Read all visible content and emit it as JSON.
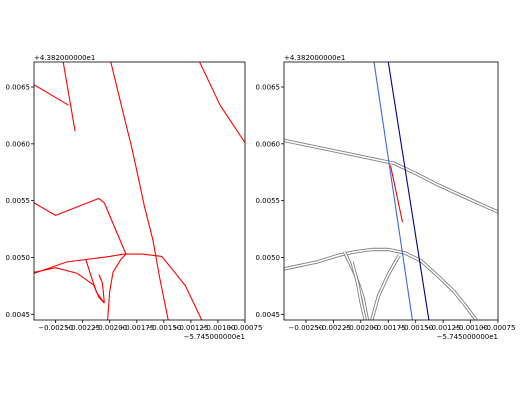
{
  "chart_data": [
    {
      "type": "line",
      "title": "",
      "xlabel": "",
      "ylabel": "",
      "x_offset_label": "−5.745000000e1",
      "y_offset_label": "+4.382000000e1",
      "xlim": [
        -0.0027,
        -0.00075
      ],
      "ylim": [
        0.00445,
        0.00672
      ],
      "x_ticks": [
        -0.0025,
        -0.00225,
        -0.002,
        -0.00175,
        -0.0015,
        -0.00125,
        -0.001,
        -0.00075
      ],
      "x_tick_labels": [
        "−0.00250",
        "−0.00225",
        "−0.00200",
        "−0.00175",
        "−0.00150",
        "−0.00125",
        "−0.00100",
        "−0.00075"
      ],
      "y_ticks": [
        0.0045,
        0.005,
        0.0055,
        0.006,
        0.0065
      ],
      "y_tick_labels": [
        "0.0045",
        "0.0050",
        "0.0055",
        "0.0060",
        "0.0065"
      ],
      "grid": false,
      "series": [
        {
          "color": "#ff0000",
          "style": "single",
          "x": [
            -0.0027,
            -0.00238
          ],
          "y": [
            0.00652,
            0.00634
          ]
        },
        {
          "color": "#ff0000",
          "style": "single",
          "x": [
            -0.00243,
            -0.00232
          ],
          "y": [
            0.00672,
            0.00611
          ]
        },
        {
          "color": "#ff0000",
          "style": "single",
          "x": [
            -0.00199,
            -0.00185,
            -0.0018,
            -0.00174,
            -0.00168,
            -0.0016,
            -0.00154,
            -0.00146
          ],
          "y": [
            0.00672,
            0.00617,
            0.00598,
            0.00572,
            0.00545,
            0.00515,
            0.00483,
            0.00445
          ]
        },
        {
          "color": "#ff0000",
          "style": "single",
          "x": [
            -0.00117,
            -0.00107,
            -0.00098,
            -0.00075
          ],
          "y": [
            0.00672,
            0.00652,
            0.00634,
            0.00601
          ]
        },
        {
          "color": "#ff0000",
          "style": "single",
          "x": [
            -0.0027,
            -0.0025,
            -0.0021,
            -0.00205,
            -0.00185
          ],
          "y": [
            0.00548,
            0.00537,
            0.00552,
            0.00548,
            0.00503
          ]
        },
        {
          "color": "#ff0000",
          "style": "single",
          "x": [
            -0.0027,
            -0.0024,
            -0.002,
            -0.00187,
            -0.0017,
            -0.00152,
            -0.0014,
            -0.0013,
            -0.00115
          ],
          "y": [
            0.00486,
            0.00496,
            0.00501,
            0.00503,
            0.00503,
            0.00501,
            0.00487,
            0.00475,
            0.00445
          ]
        },
        {
          "color": "#ff0000",
          "style": "single",
          "x": [
            -0.0027,
            -0.0025,
            -0.0023,
            -0.00215,
            -0.0021,
            -0.00205
          ],
          "y": [
            0.00487,
            0.00491,
            0.00486,
            0.00476,
            0.00465,
            0.0046
          ]
        },
        {
          "color": "#ff0000",
          "style": "single",
          "x": [
            -0.00222,
            -0.00216,
            -0.00212,
            -0.00205
          ],
          "y": [
            0.00498,
            0.0048,
            0.00469,
            0.0046
          ]
        },
        {
          "color": "#ff0000",
          "style": "single",
          "x": [
            -0.0021,
            -0.00207,
            -0.00206,
            -0.00205
          ],
          "y": [
            0.00485,
            0.00478,
            0.0047,
            0.0046
          ]
        },
        {
          "color": "#ff0000",
          "style": "single",
          "x": [
            -0.00202,
            -0.002,
            -0.00197,
            -0.0019,
            -0.00185
          ],
          "y": [
            0.00445,
            0.0047,
            0.00487,
            0.00498,
            0.00503
          ]
        }
      ]
    },
    {
      "type": "line",
      "title": "",
      "xlabel": "",
      "ylabel": "",
      "x_offset_label": "−5.745000000e1",
      "y_offset_label": "+4.382000000e1",
      "xlim": [
        -0.0027,
        -0.00075
      ],
      "ylim": [
        0.00445,
        0.00672
      ],
      "x_ticks": [
        -0.0025,
        -0.00225,
        -0.002,
        -0.00175,
        -0.0015,
        -0.00125,
        -0.001,
        -0.00075
      ],
      "x_tick_labels": [
        "−0.00250",
        "−0.00225",
        "−0.00200",
        "−0.00175",
        "−0.00150",
        "−0.00125",
        "−0.00100",
        "−0.00075"
      ],
      "y_ticks": [
        0.0045,
        0.005,
        0.0055,
        0.006,
        0.0065
      ],
      "y_tick_labels": [
        "0.0045",
        "0.0050",
        "0.0055",
        "0.0060",
        "0.0065"
      ],
      "grid": false,
      "series": [
        {
          "color": "#808080",
          "style": "double",
          "x": [
            -0.0027,
            -0.0023,
            -0.00195,
            -0.0017,
            -0.0015,
            -0.0013,
            -0.00105,
            -0.00075
          ],
          "y": [
            0.00603,
            0.00595,
            0.00588,
            0.00583,
            0.00574,
            0.00564,
            0.00553,
            0.0054
          ]
        },
        {
          "color": "#808080",
          "style": "double",
          "x": [
            -0.0027,
            -0.0024,
            -0.0022,
            -0.00205,
            -0.0019,
            -0.00175,
            -0.0016,
            -0.00145,
            -0.0013,
            -0.00115,
            -0.00105,
            -0.00095
          ],
          "y": [
            0.0049,
            0.00496,
            0.00502,
            0.00505,
            0.00507,
            0.00507,
            0.00504,
            0.00497,
            0.00484,
            0.0047,
            0.00458,
            0.00445
          ]
        },
        {
          "color": "#808080",
          "style": "double",
          "x": [
            -0.00215,
            -0.00205,
            -0.00198,
            -0.00194
          ],
          "y": [
            0.00505,
            0.00485,
            0.00465,
            0.00445
          ]
        },
        {
          "color": "#808080",
          "style": "double",
          "x": [
            -0.00208,
            -0.00203,
            -0.002,
            -0.00196
          ],
          "y": [
            0.00496,
            0.00478,
            0.00462,
            0.00445
          ]
        },
        {
          "color": "#808080",
          "style": "double",
          "x": [
            -0.0019,
            -0.00184,
            -0.00175,
            -0.00165
          ],
          "y": [
            0.00445,
            0.00466,
            0.00485,
            0.00502
          ]
        },
        {
          "color": "#4169e1",
          "style": "single",
          "x": [
            -0.00188,
            -0.00153
          ],
          "y": [
            0.00672,
            0.00445
          ]
        },
        {
          "color": "#00008b",
          "style": "single",
          "x": [
            -0.00175,
            -0.00138
          ],
          "y": [
            0.00672,
            0.00445
          ]
        },
        {
          "color": "#ff0000",
          "style": "single",
          "x": [
            -0.00173,
            -0.00162
          ],
          "y": [
            0.00581,
            0.00531
          ]
        }
      ]
    }
  ]
}
